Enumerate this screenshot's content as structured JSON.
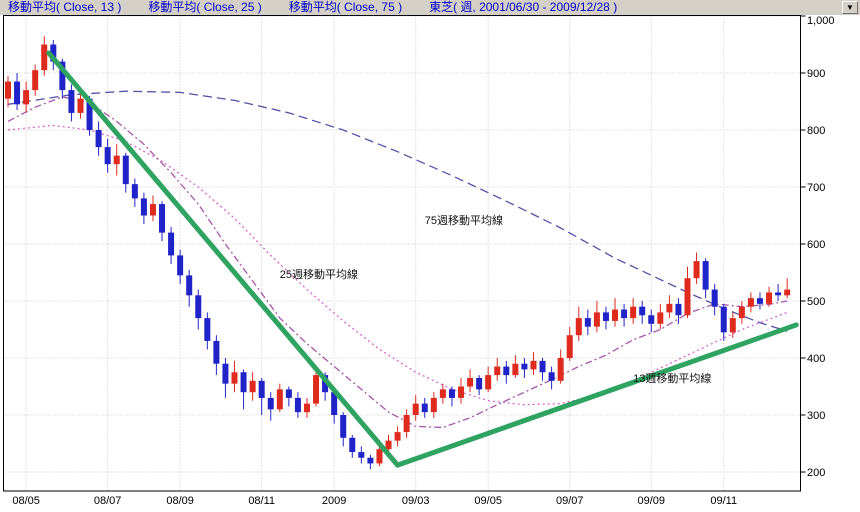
{
  "header": {
    "items": [
      {
        "label": "移動平均( Close, 13 )"
      },
      {
        "label": "移動平均( Close, 25 )"
      },
      {
        "label": "移動平均( Close, 75 )"
      },
      {
        "label": "東芝( 週, 2001/06/30 - 2009/12/28 )"
      }
    ],
    "text_color": "#0000c8",
    "dropdown_icon": "▼"
  },
  "chart_data": {
    "type": "candlestick",
    "title": "東芝( 週, 2001/06/30 - 2009/12/28 )",
    "period": "週",
    "date_range": "2001/06/30 - 2009/12/28",
    "colors": {
      "up": "#df2a1e",
      "down": "#2023c8",
      "ma13": "#a856a8",
      "ma25": "#d964cf",
      "ma75": "#5252aa",
      "trend": "#2fa361",
      "grid": "#c6c6c6",
      "axis": "#000000"
    },
    "y_axis": {
      "min": 167,
      "max": 1008,
      "ticks": [
        {
          "value": 1000,
          "label": "1,000"
        },
        {
          "value": 900,
          "label": "900"
        },
        {
          "value": 800,
          "label": "800"
        },
        {
          "value": 700,
          "label": "700"
        },
        {
          "value": 600,
          "label": "600"
        },
        {
          "value": 500,
          "label": "500"
        },
        {
          "value": 400,
          "label": "400"
        },
        {
          "value": 300,
          "label": "300"
        },
        {
          "value": 200,
          "label": "200"
        }
      ]
    },
    "x_axis": {
      "ticks": [
        {
          "week": 3,
          "label": "08/05"
        },
        {
          "week": 12,
          "label": "08/07"
        },
        {
          "week": 20,
          "label": "08/09"
        },
        {
          "week": 29,
          "label": "08/11"
        },
        {
          "week": 37,
          "label": "2009"
        },
        {
          "week": 46,
          "label": "09/03"
        },
        {
          "week": 54,
          "label": "09/05"
        },
        {
          "week": 63,
          "label": "09/07"
        },
        {
          "week": 72,
          "label": "09/09"
        },
        {
          "week": 80,
          "label": "09/11"
        }
      ]
    },
    "candles": [
      [
        855,
        895,
        840,
        885
      ],
      [
        885,
        900,
        835,
        845
      ],
      [
        845,
        885,
        830,
        870
      ],
      [
        870,
        915,
        860,
        905
      ],
      [
        905,
        965,
        895,
        950
      ],
      [
        950,
        958,
        905,
        920
      ],
      [
        920,
        925,
        855,
        870
      ],
      [
        870,
        880,
        815,
        830
      ],
      [
        830,
        870,
        820,
        855
      ],
      [
        855,
        860,
        790,
        800
      ],
      [
        800,
        815,
        755,
        770
      ],
      [
        770,
        785,
        725,
        740
      ],
      [
        740,
        775,
        720,
        755
      ],
      [
        755,
        760,
        690,
        705
      ],
      [
        705,
        715,
        665,
        680
      ],
      [
        680,
        690,
        635,
        650
      ],
      [
        650,
        685,
        640,
        670
      ],
      [
        670,
        675,
        605,
        620
      ],
      [
        620,
        630,
        565,
        580
      ],
      [
        580,
        590,
        530,
        545
      ],
      [
        545,
        555,
        490,
        510
      ],
      [
        510,
        520,
        450,
        470
      ],
      [
        470,
        480,
        415,
        430
      ],
      [
        430,
        440,
        370,
        390
      ],
      [
        390,
        400,
        330,
        355
      ],
      [
        355,
        395,
        340,
        375
      ],
      [
        375,
        380,
        310,
        340
      ],
      [
        340,
        375,
        325,
        360
      ],
      [
        360,
        365,
        300,
        330
      ],
      [
        330,
        340,
        290,
        310
      ],
      [
        310,
        355,
        305,
        345
      ],
      [
        345,
        350,
        315,
        330
      ],
      [
        330,
        340,
        295,
        305
      ],
      [
        305,
        330,
        295,
        320
      ],
      [
        320,
        385,
        315,
        370
      ],
      [
        370,
        375,
        325,
        340
      ],
      [
        340,
        345,
        285,
        300
      ],
      [
        300,
        305,
        245,
        260
      ],
      [
        260,
        265,
        225,
        235
      ],
      [
        235,
        245,
        215,
        225
      ],
      [
        225,
        230,
        205,
        215
      ],
      [
        215,
        250,
        210,
        240
      ],
      [
        240,
        265,
        230,
        255
      ],
      [
        255,
        280,
        245,
        270
      ],
      [
        270,
        310,
        260,
        300
      ],
      [
        300,
        335,
        290,
        320
      ],
      [
        320,
        330,
        295,
        305
      ],
      [
        305,
        340,
        295,
        330
      ],
      [
        330,
        355,
        320,
        345
      ],
      [
        345,
        350,
        315,
        330
      ],
      [
        330,
        365,
        320,
        350
      ],
      [
        350,
        380,
        340,
        365
      ],
      [
        365,
        370,
        335,
        345
      ],
      [
        345,
        385,
        340,
        370
      ],
      [
        370,
        400,
        360,
        385
      ],
      [
        385,
        395,
        355,
        370
      ],
      [
        370,
        405,
        365,
        390
      ],
      [
        390,
        400,
        365,
        380
      ],
      [
        380,
        410,
        370,
        395
      ],
      [
        395,
        400,
        360,
        375
      ],
      [
        375,
        385,
        345,
        360
      ],
      [
        360,
        415,
        355,
        400
      ],
      [
        400,
        455,
        395,
        440
      ],
      [
        440,
        490,
        430,
        470
      ],
      [
        470,
        485,
        440,
        455
      ],
      [
        455,
        500,
        445,
        480
      ],
      [
        480,
        490,
        450,
        465
      ],
      [
        465,
        505,
        455,
        485
      ],
      [
        485,
        495,
        455,
        470
      ],
      [
        470,
        505,
        460,
        490
      ],
      [
        490,
        500,
        460,
        475
      ],
      [
        475,
        485,
        445,
        460
      ],
      [
        460,
        495,
        450,
        480
      ],
      [
        480,
        510,
        470,
        495
      ],
      [
        495,
        505,
        460,
        475
      ],
      [
        475,
        560,
        470,
        540
      ],
      [
        540,
        585,
        530,
        570
      ],
      [
        570,
        575,
        505,
        520
      ],
      [
        520,
        530,
        475,
        490
      ],
      [
        490,
        495,
        430,
        445
      ],
      [
        445,
        480,
        435,
        470
      ],
      [
        470,
        500,
        460,
        490
      ],
      [
        490,
        515,
        480,
        505
      ],
      [
        505,
        515,
        485,
        495
      ],
      [
        495,
        525,
        490,
        515
      ],
      [
        515,
        530,
        500,
        510
      ],
      [
        510,
        540,
        505,
        520
      ]
    ],
    "ma_lines": [
      {
        "name": "75週移動平均線",
        "style": "longdash",
        "color": "#5252aa",
        "anchors": [
          [
            1,
            845
          ],
          [
            8,
            862
          ],
          [
            14,
            868
          ],
          [
            20,
            866
          ],
          [
            26,
            852
          ],
          [
            32,
            830
          ],
          [
            38,
            800
          ],
          [
            44,
            762
          ],
          [
            50,
            720
          ],
          [
            56,
            675
          ],
          [
            62,
            628
          ],
          [
            68,
            575
          ],
          [
            72,
            545
          ],
          [
            76,
            515
          ],
          [
            80,
            487
          ],
          [
            84,
            462
          ],
          [
            87,
            447
          ]
        ]
      },
      {
        "name": "25週移動平均線",
        "style": "dotted",
        "color": "#d964cf",
        "anchors": [
          [
            1,
            800
          ],
          [
            6,
            808
          ],
          [
            10,
            800
          ],
          [
            14,
            780
          ],
          [
            18,
            745
          ],
          [
            22,
            700
          ],
          [
            26,
            645
          ],
          [
            30,
            580
          ],
          [
            34,
            520
          ],
          [
            38,
            465
          ],
          [
            42,
            415
          ],
          [
            46,
            375
          ],
          [
            50,
            345
          ],
          [
            54,
            325
          ],
          [
            58,
            318
          ],
          [
            62,
            320
          ],
          [
            66,
            335
          ],
          [
            70,
            360
          ],
          [
            74,
            390
          ],
          [
            78,
            420
          ],
          [
            82,
            450
          ],
          [
            87,
            480
          ]
        ]
      },
      {
        "name": "13週移動平均線",
        "style": "dashdot",
        "color": "#a856a8",
        "anchors": [
          [
            1,
            815
          ],
          [
            4,
            840
          ],
          [
            7,
            858
          ],
          [
            10,
            848
          ],
          [
            13,
            815
          ],
          [
            16,
            775
          ],
          [
            19,
            725
          ],
          [
            22,
            670
          ],
          [
            25,
            600
          ],
          [
            28,
            535
          ],
          [
            31,
            470
          ],
          [
            34,
            425
          ],
          [
            37,
            385
          ],
          [
            40,
            345
          ],
          [
            43,
            305
          ],
          [
            46,
            280
          ],
          [
            49,
            278
          ],
          [
            52,
            295
          ],
          [
            55,
            318
          ],
          [
            58,
            340
          ],
          [
            61,
            362
          ],
          [
            64,
            385
          ],
          [
            67,
            405
          ],
          [
            70,
            432
          ],
          [
            73,
            450
          ],
          [
            76,
            478
          ],
          [
            79,
            495
          ],
          [
            82,
            490
          ],
          [
            85,
            494
          ],
          [
            87,
            500
          ]
        ]
      }
    ],
    "trend_lines": [
      {
        "from": [
          5.5,
          935
        ],
        "to": [
          44,
          212
        ]
      },
      {
        "from": [
          44,
          212
        ],
        "to": [
          88,
          458
        ]
      }
    ],
    "annotations": [
      {
        "text": "75週移動平均線",
        "week": 47,
        "value": 635
      },
      {
        "text": "25週移動平均線",
        "week": 31,
        "value": 540
      },
      {
        "text": "13週移動平均線",
        "week": 70,
        "value": 358
      }
    ]
  }
}
